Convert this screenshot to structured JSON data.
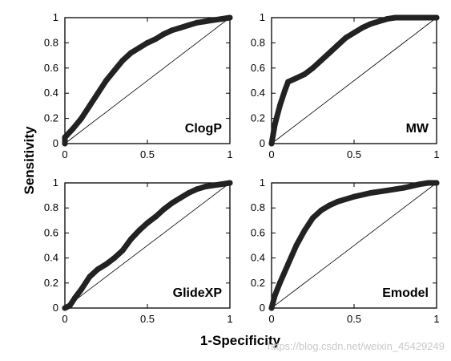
{
  "figure": {
    "xlabel": "1-Specificity",
    "ylabel": "Sensitivity",
    "watermark": "https://blog.csdn.net/weixin_45429249",
    "curve_color": "#222222",
    "frame_color": "#000000"
  },
  "chart_data": [
    {
      "type": "line",
      "label": "ClogP",
      "xlim": [
        0,
        1
      ],
      "ylim": [
        0,
        1
      ],
      "xticks": [
        "0",
        "0.5",
        "1"
      ],
      "yticks": [
        "0",
        "0.2",
        "0.4",
        "0.6",
        "0.8",
        "1"
      ],
      "diagonal": true,
      "x": [
        0,
        0,
        0.05,
        0.1,
        0.15,
        0.2,
        0.25,
        0.3,
        0.35,
        0.4,
        0.45,
        0.5,
        0.55,
        0.6,
        0.65,
        0.7,
        0.75,
        0.8,
        0.85,
        0.9,
        0.95,
        1.0
      ],
      "y": [
        0,
        0.05,
        0.12,
        0.2,
        0.3,
        0.4,
        0.5,
        0.58,
        0.66,
        0.72,
        0.76,
        0.8,
        0.83,
        0.87,
        0.9,
        0.92,
        0.94,
        0.96,
        0.97,
        0.98,
        0.99,
        1.0
      ]
    },
    {
      "type": "line",
      "label": "MW",
      "xlim": [
        0,
        1
      ],
      "ylim": [
        0,
        1
      ],
      "xticks": [
        "0",
        "0.5",
        "1"
      ],
      "yticks": [
        "0",
        "0.2",
        "0.4",
        "0.6",
        "0.8",
        "1"
      ],
      "diagonal": true,
      "x": [
        0,
        0.02,
        0.05,
        0.08,
        0.1,
        0.15,
        0.2,
        0.25,
        0.3,
        0.35,
        0.4,
        0.45,
        0.5,
        0.55,
        0.6,
        0.65,
        0.7,
        0.75,
        0.8,
        0.9,
        1.0
      ],
      "y": [
        0,
        0.15,
        0.3,
        0.42,
        0.49,
        0.52,
        0.55,
        0.6,
        0.66,
        0.72,
        0.78,
        0.84,
        0.88,
        0.92,
        0.95,
        0.97,
        0.99,
        1.0,
        1.0,
        1.0,
        1.0
      ]
    },
    {
      "type": "line",
      "label": "GlideXP",
      "xlim": [
        0,
        1
      ],
      "ylim": [
        0,
        1
      ],
      "xticks": [
        "0",
        "0.5",
        "1"
      ],
      "yticks": [
        "0",
        "0.2",
        "0.4",
        "0.6",
        "0.8",
        "1"
      ],
      "diagonal": true,
      "x": [
        0,
        0.03,
        0.06,
        0.1,
        0.15,
        0.2,
        0.25,
        0.3,
        0.35,
        0.4,
        0.45,
        0.5,
        0.55,
        0.6,
        0.65,
        0.7,
        0.75,
        0.8,
        0.85,
        0.9,
        0.95,
        1.0
      ],
      "y": [
        0,
        0.02,
        0.08,
        0.15,
        0.25,
        0.31,
        0.35,
        0.4,
        0.46,
        0.55,
        0.62,
        0.68,
        0.73,
        0.79,
        0.84,
        0.88,
        0.92,
        0.95,
        0.97,
        0.98,
        0.99,
        1.0
      ]
    },
    {
      "type": "line",
      "label": "Emodel",
      "xlim": [
        0,
        1
      ],
      "ylim": [
        0,
        1
      ],
      "xticks": [
        "0",
        "0.5",
        "1"
      ],
      "yticks": [
        "0",
        "0.2",
        "0.4",
        "0.6",
        "0.8",
        "1"
      ],
      "diagonal": true,
      "x": [
        0,
        0.02,
        0.05,
        0.1,
        0.15,
        0.2,
        0.25,
        0.3,
        0.35,
        0.4,
        0.5,
        0.6,
        0.7,
        0.8,
        0.9,
        0.95,
        1.0
      ],
      "y": [
        0,
        0.1,
        0.2,
        0.35,
        0.5,
        0.62,
        0.72,
        0.78,
        0.82,
        0.85,
        0.89,
        0.92,
        0.94,
        0.96,
        0.99,
        1.0,
        1.0
      ]
    }
  ]
}
